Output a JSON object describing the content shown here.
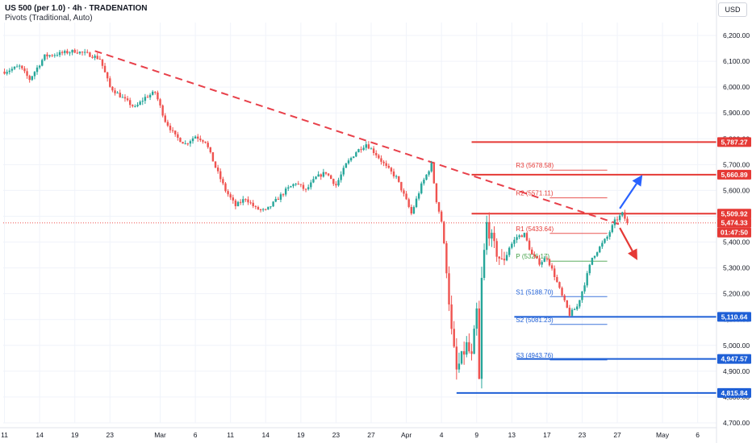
{
  "header": {
    "line1": "US 500 (per 1.0) · 4h · TRADENATION",
    "line2": "Pivots (Traditional, Auto)",
    "currency": "USD"
  },
  "colors": {
    "up": "#26a69a",
    "down": "#ef5350",
    "resistance": "#e53935",
    "support": "#1e5fd6",
    "pivot": "#43a047",
    "trendline": "#e8404a",
    "arrow_up": "#2962ff",
    "arrow_down": "#e53935",
    "axis_text": "#131722",
    "grid": "#f0f3fa"
  },
  "chart_data": {
    "type": "candlestick",
    "y_axis": {
      "min": 4700,
      "max": 6250,
      "ticks": [
        "6,200.00",
        "6,100.00",
        "6,000.00",
        "5,900.00",
        "5,800.00",
        "5,700.00",
        "5,600.00",
        "5,500.00",
        "5,400.00",
        "5,300.00",
        "5,200.00",
        "5,100.00",
        "5,000.00",
        "4,900.00",
        "4,800.00",
        "4,700.00"
      ],
      "tick_values": [
        6200,
        6100,
        6000,
        5900,
        5800,
        5700,
        5600,
        5500,
        5400,
        5300,
        5200,
        5100,
        5000,
        4900,
        4800,
        4700
      ]
    },
    "x_axis": {
      "labels": [
        "11",
        "14",
        "19",
        "23",
        "Mar",
        "6",
        "11",
        "14",
        "19",
        "23",
        "27",
        "Apr",
        "4",
        "9",
        "13",
        "17",
        "23",
        "27",
        "May",
        "6"
      ],
      "label_index": [
        0,
        14,
        28,
        42,
        62,
        76,
        90,
        104,
        118,
        132,
        146,
        160,
        174,
        188,
        202,
        216,
        230,
        244,
        262,
        276
      ]
    },
    "price_labels": [
      {
        "text": "5,787.27",
        "value": 5787.27,
        "color": "#e53935"
      },
      {
        "text": "5,660.89",
        "value": 5660.89,
        "color": "#e53935"
      },
      {
        "text": "5,509.92",
        "value": 5509.92,
        "color": "#e53935"
      },
      {
        "text": "5,474.33",
        "value": 5474.33,
        "color": "#e53935"
      },
      {
        "text": "01:47:50",
        "value": 5474.33,
        "color": "#e53935"
      },
      {
        "text": "5,110.64",
        "value": 5110.64,
        "color": "#1e5fd6"
      },
      {
        "text": "4,947.57",
        "value": 4947.57,
        "color": "#1e5fd6"
      },
      {
        "text": "4,815.84",
        "value": 4815.84,
        "color": "#1e5fd6"
      }
    ],
    "horizontal_levels": [
      {
        "value": 5787.27,
        "from_index": 186,
        "color": "#e53935"
      },
      {
        "value": 5660.89,
        "from_index": 186,
        "color": "#e53935"
      },
      {
        "value": 5509.92,
        "from_index": 186,
        "color": "#e53935"
      },
      {
        "value": 5110.64,
        "from_index": 203,
        "color": "#1e5fd6"
      },
      {
        "value": 4947.57,
        "from_index": 204,
        "color": "#1e5fd6"
      },
      {
        "value": 4815.84,
        "from_index": 180,
        "color": "#1e5fd6"
      }
    ],
    "pivots": [
      {
        "label": "R3 (5678.58)",
        "value": 5678.58,
        "kind": "R"
      },
      {
        "label": "R2 (5571.11)",
        "value": 5571.11,
        "kind": "R"
      },
      {
        "label": "R1 (5433.64)",
        "value": 5433.64,
        "kind": "R"
      },
      {
        "label": "P (5326.17)",
        "value": 5326.17,
        "kind": "P"
      },
      {
        "label": "S1 (5188.70)",
        "value": 5188.7,
        "kind": "S"
      },
      {
        "label": "S2 (5081.23)",
        "value": 5081.23,
        "kind": "S"
      },
      {
        "label": "S3 (4943.76)",
        "value": 4943.76,
        "kind": "S"
      }
    ],
    "pivot_range": {
      "from_index": 203,
      "to_index": 240
    },
    "trendline": {
      "from_index": 36,
      "from_value": 6140,
      "to_index": 246,
      "to_value": 5465
    },
    "current_price": 5474.33,
    "arrows": [
      {
        "direction": "up",
        "from_index": 245,
        "from_value": 5530,
        "to_index": 254,
        "to_value": 5660
      },
      {
        "direction": "down",
        "from_index": 245,
        "from_value": 5455,
        "to_index": 252,
        "to_value": 5330
      }
    ],
    "keypoints": [
      [
        0,
        6060
      ],
      [
        6,
        6080
      ],
      [
        10,
        6030
      ],
      [
        16,
        6120
      ],
      [
        22,
        6130
      ],
      [
        28,
        6140
      ],
      [
        34,
        6125
      ],
      [
        38,
        6110
      ],
      [
        42,
        6000
      ],
      [
        48,
        5950
      ],
      [
        52,
        5920
      ],
      [
        56,
        5960
      ],
      [
        60,
        5980
      ],
      [
        64,
        5870
      ],
      [
        68,
        5810
      ],
      [
        72,
        5780
      ],
      [
        76,
        5810
      ],
      [
        80,
        5790
      ],
      [
        84,
        5690
      ],
      [
        88,
        5600
      ],
      [
        92,
        5540
      ],
      [
        96,
        5570
      ],
      [
        100,
        5530
      ],
      [
        104,
        5520
      ],
      [
        108,
        5560
      ],
      [
        112,
        5600
      ],
      [
        116,
        5630
      ],
      [
        120,
        5600
      ],
      [
        124,
        5650
      ],
      [
        128,
        5670
      ],
      [
        132,
        5620
      ],
      [
        136,
        5700
      ],
      [
        140,
        5750
      ],
      [
        144,
        5780
      ],
      [
        148,
        5740
      ],
      [
        152,
        5690
      ],
      [
        156,
        5650
      ],
      [
        160,
        5560
      ],
      [
        162,
        5510
      ],
      [
        166,
        5620
      ],
      [
        170,
        5700
      ],
      [
        172,
        5560
      ],
      [
        174,
        5480
      ],
      [
        176,
        5300
      ],
      [
        178,
        5050
      ],
      [
        180,
        4900
      ],
      [
        184,
        5000
      ],
      [
        186,
        4950
      ],
      [
        188,
        5130
      ],
      [
        189,
        4860
      ],
      [
        190,
        5250
      ],
      [
        192,
        5470
      ],
      [
        195,
        5380
      ],
      [
        198,
        5320
      ],
      [
        201,
        5380
      ],
      [
        204,
        5420
      ],
      [
        207,
        5430
      ],
      [
        210,
        5350
      ],
      [
        213,
        5320
      ],
      [
        216,
        5340
      ],
      [
        219,
        5270
      ],
      [
        222,
        5190
      ],
      [
        225,
        5120
      ],
      [
        228,
        5150
      ],
      [
        231,
        5240
      ],
      [
        234,
        5340
      ],
      [
        237,
        5380
      ],
      [
        240,
        5420
      ],
      [
        243,
        5480
      ],
      [
        246,
        5509
      ],
      [
        248,
        5474
      ]
    ]
  }
}
